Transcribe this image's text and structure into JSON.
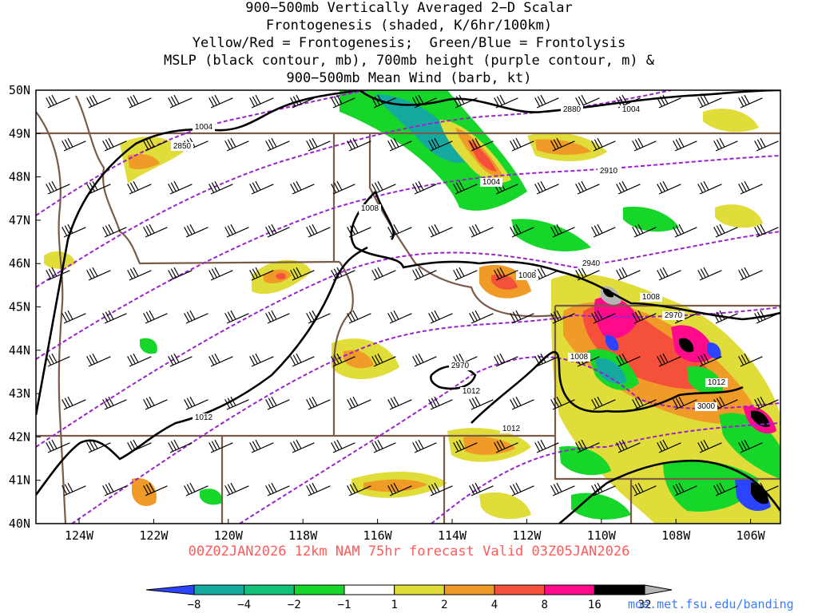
{
  "title": {
    "line1": "900−500mb Vertically Averaged 2−D Scalar",
    "line2": "Frontogenesis (shaded, K/6hr/100km)",
    "line3": "Yellow/Red = Frontogenesis;  Green/Blue = Frontolysis",
    "line4": "MSLP (black contour, mb), 700mb height (purple contour, m) &",
    "line5": "900−500mb Mean Wind (barb, kt)"
  },
  "axes": {
    "lat_labels": [
      "50N",
      "49N",
      "48N",
      "47N",
      "46N",
      "45N",
      "44N",
      "43N",
      "42N",
      "41N",
      "40N"
    ],
    "lon_labels": [
      "124W",
      "122W",
      "120W",
      "118W",
      "116W",
      "114W",
      "112W",
      "110W",
      "108W",
      "106W"
    ]
  },
  "contour_labels": {
    "mslp": [
      "1004",
      "1004",
      "1004",
      "1008",
      "1008",
      "1008",
      "1008",
      "1012",
      "1012",
      "1012",
      "1012"
    ],
    "height": [
      "2850",
      "2880",
      "2910",
      "2940",
      "2970",
      "2970",
      "3000"
    ]
  },
  "footer": "00Z02JAN2026 12km NAM 75hr forecast Valid 03Z05JAN2026",
  "colorbar": {
    "ticks": [
      "−8",
      "−4",
      "−2",
      "−1",
      "1",
      "2",
      "4",
      "8",
      "16",
      "32"
    ],
    "colors": [
      "#2a44ff",
      "#16a9a0",
      "#13c27a",
      "#16d62a",
      "#ffffff",
      "#e0dc3a",
      "#f09a28",
      "#f5503a",
      "#ff0a8a",
      "#000000",
      "#b4b4b4"
    ]
  },
  "credit": "moe.met.fsu.edu/banding",
  "colors": {
    "state_border": "#7a5a48",
    "mslp": "#000000",
    "height": "#9a20d0",
    "footer": "#ff5a5a",
    "credit": "#3b7bff"
  }
}
